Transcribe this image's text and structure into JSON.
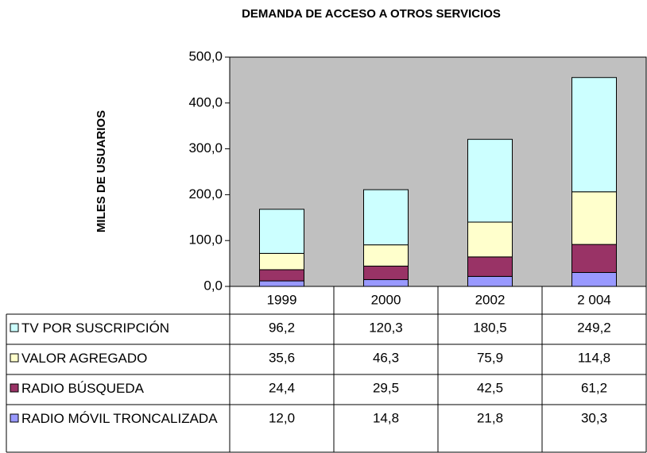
{
  "chart_data": {
    "type": "stacked_bar",
    "title": "DEMANDA DE ACCESO A OTROS SERVICIOS",
    "y_label": "MILES DE USUARIOS",
    "categories": [
      "1999",
      "2000",
      "2002",
      "2 004"
    ],
    "series": [
      {
        "name": "TV POR SUSCRIPCIÓN",
        "color": "#ccffff",
        "values": [
          96.2,
          120.3,
          180.5,
          249.2
        ],
        "value_labels": [
          "96,2",
          "120,3",
          "180,5",
          "249,2"
        ]
      },
      {
        "name": "VALOR AGREGADO",
        "color": "#ffffcc",
        "values": [
          35.6,
          46.3,
          75.9,
          114.8
        ],
        "value_labels": [
          "35,6",
          "46,3",
          "75,9",
          "114,8"
        ]
      },
      {
        "name": "RADIO BÚSQUEDA",
        "color": "#993366",
        "values": [
          24.4,
          29.5,
          42.5,
          61.2
        ],
        "value_labels": [
          "24,4",
          "29,5",
          "42,5",
          "61,2"
        ]
      },
      {
        "name": "RADIO MÓVIL TRONCALIZADA",
        "color": "#9999ff",
        "values": [
          12.0,
          14.8,
          21.8,
          30.3
        ],
        "value_labels": [
          "12,0",
          "14,8",
          "21,8",
          "30,3"
        ]
      }
    ],
    "ylim": [
      0,
      500
    ],
    "yticks": [
      {
        "value": 0,
        "label": "0,0"
      },
      {
        "value": 100,
        "label": "100,0"
      },
      {
        "value": 200,
        "label": "200,0"
      },
      {
        "value": 300,
        "label": "300,0"
      },
      {
        "value": 400,
        "label": "400,0"
      },
      {
        "value": 500,
        "label": "500,0"
      }
    ],
    "grid": false,
    "plot_background": "#c0c0c0"
  }
}
